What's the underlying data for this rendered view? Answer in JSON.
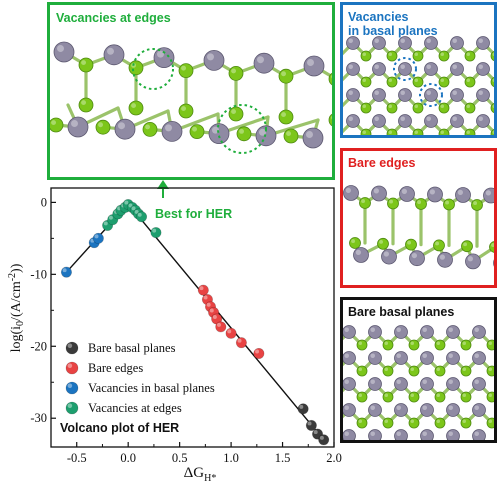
{
  "panels": {
    "edge_vacancies": {
      "label": "Vacancies at edges",
      "color": "#1fae3c"
    },
    "basal_vacancies": {
      "label_line1": "Vacancies",
      "label_line2": "in basal planes",
      "color": "#1b74c0"
    },
    "bare_edges": {
      "label": "Bare edges",
      "color": "#e02020"
    },
    "bare_basal": {
      "label": "Bare basal planes",
      "color": "#111111"
    }
  },
  "best_for_her": {
    "label": "Best for HER",
    "color": "#1fae3c"
  },
  "colors": {
    "metal_atom": "#8f8aa3",
    "chalcogen_atom": "#7cc61a",
    "bond": "#9bc36a"
  },
  "chart_data": {
    "type": "scatter",
    "title": "Volcano plot of HER",
    "xlabel": "ΔG_H*",
    "ylabel": "log(i0/(A/cm-2))",
    "xlim": [
      -0.75,
      2.0
    ],
    "ylim": [
      -34,
      2
    ],
    "xticks": [
      "-0.5",
      "0.0",
      "0.5",
      "1.0",
      "1.5",
      "2.0"
    ],
    "xtick_values": [
      -0.5,
      0.0,
      0.5,
      1.0,
      1.5,
      2.0
    ],
    "yticks": [
      "0",
      "-10",
      "-20",
      "-30"
    ],
    "ytick_values": [
      0,
      -10,
      -20,
      -30
    ],
    "legend_position": "bottom-left",
    "volcano_line": {
      "x": [
        -0.6,
        0.0,
        1.9
      ],
      "y": [
        -9.7,
        -0.2,
        -33.0
      ]
    },
    "series": [
      {
        "name": "Bare basal planes",
        "color": "#3a3a3a",
        "x": [
          1.7,
          1.78,
          1.84,
          1.9
        ],
        "y": [
          -28.7,
          -31.0,
          -32.2,
          -33.0
        ]
      },
      {
        "name": "Bare edges",
        "color": "#e84343",
        "x": [
          0.73,
          0.77,
          0.8,
          0.83,
          0.86,
          0.9,
          1.0,
          1.1,
          1.27
        ],
        "y": [
          -12.2,
          -13.5,
          -14.5,
          -15.3,
          -16.2,
          -17.3,
          -18.2,
          -19.5,
          -21.0
        ]
      },
      {
        "name": "Vacancies in basal planes",
        "color": "#1b74c0",
        "x": [
          -0.6,
          -0.33,
          -0.29
        ],
        "y": [
          -9.7,
          -5.6,
          -5.0
        ]
      },
      {
        "name": "Vacancies at edges",
        "color": "#1d9e6e",
        "x": [
          -0.2,
          -0.15,
          -0.1,
          -0.07,
          -0.03,
          0.0,
          0.04,
          0.07,
          0.1,
          0.13,
          0.27
        ],
        "y": [
          -3.2,
          -2.4,
          -1.6,
          -1.1,
          -0.7,
          -0.3,
          -0.7,
          -1.1,
          -1.6,
          -2.0,
          -4.2
        ]
      }
    ]
  }
}
